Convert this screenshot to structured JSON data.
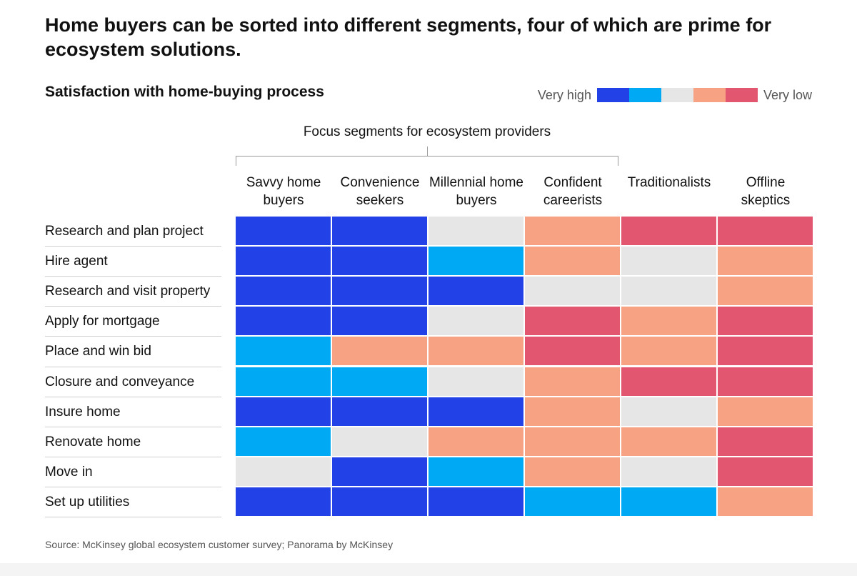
{
  "title": "Home buyers can be sorted into different segments, four of which are prime for ecosystem solutions.",
  "subtitle": "Satisfaction with home-buying process",
  "legend": {
    "high_label": "Very high",
    "low_label": "Very low",
    "scale": [
      {
        "level": 1,
        "color": "#2241e6"
      },
      {
        "level": 2,
        "color": "#00a9f4"
      },
      {
        "level": 3,
        "color": "#e6e6e6"
      },
      {
        "level": 4,
        "color": "#f7a383"
      },
      {
        "level": 5,
        "color": "#e3566f"
      }
    ]
  },
  "focus_label": "Focus segments for ecosystem providers",
  "source": "Source: McKinsey global ecosystem customer survey; Panorama by McKinsey",
  "chart_data": {
    "type": "heatmap",
    "title": "Satisfaction with home-buying process",
    "value_meaning": "1 = Very high, 2, 3, 4, 5 = Very low",
    "columns": [
      "Savvy home buyers",
      "Convenience seekers",
      "Millennial home buyers",
      "Confident careerists",
      "Traditionalists",
      "Offline skeptics"
    ],
    "focus_columns": [
      "Savvy home buyers",
      "Convenience seekers",
      "Millennial home buyers",
      "Confident careerists"
    ],
    "rows": [
      "Research and plan project",
      "Hire agent",
      "Research and visit property",
      "Apply for mortgage",
      "Place and win bid",
      "Closure and conveyance",
      "Insure home",
      "Renovate home",
      "Move in",
      "Set up utilities"
    ],
    "values": [
      [
        1,
        1,
        3,
        4,
        5,
        5
      ],
      [
        1,
        1,
        2,
        4,
        3,
        4
      ],
      [
        1,
        1,
        1,
        3,
        3,
        4
      ],
      [
        1,
        1,
        3,
        5,
        4,
        5
      ],
      [
        2,
        4,
        4,
        5,
        4,
        5
      ],
      [
        2,
        2,
        3,
        4,
        5,
        5
      ],
      [
        1,
        1,
        1,
        4,
        3,
        4
      ],
      [
        2,
        3,
        4,
        4,
        4,
        5
      ],
      [
        3,
        1,
        2,
        4,
        3,
        5
      ],
      [
        1,
        1,
        1,
        2,
        2,
        4
      ]
    ]
  }
}
